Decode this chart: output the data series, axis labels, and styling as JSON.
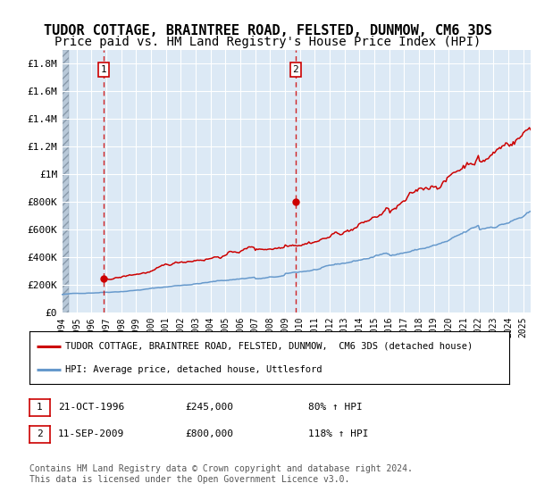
{
  "title": "TUDOR COTTAGE, BRAINTREE ROAD, FELSTED, DUNMOW, CM6 3DS",
  "subtitle": "Price paid vs. HM Land Registry's House Price Index (HPI)",
  "ylim": [
    0,
    1900000
  ],
  "xlim_start": 1994.0,
  "xlim_end": 2025.5,
  "yticks": [
    0,
    200000,
    400000,
    600000,
    800000,
    1000000,
    1200000,
    1400000,
    1600000,
    1800000
  ],
  "ytick_labels": [
    "£0",
    "£200K",
    "£400K",
    "£600K",
    "£800K",
    "£1M",
    "£1.2M",
    "£1.4M",
    "£1.6M",
    "£1.8M"
  ],
  "xtick_years": [
    1994,
    1995,
    1996,
    1997,
    1998,
    1999,
    2000,
    2001,
    2002,
    2003,
    2004,
    2005,
    2006,
    2007,
    2008,
    2009,
    2010,
    2011,
    2012,
    2013,
    2014,
    2015,
    2016,
    2017,
    2018,
    2019,
    2020,
    2021,
    2022,
    2023,
    2024,
    2025
  ],
  "transaction1_x": 1996.8,
  "transaction1_y": 245000,
  "transaction1_label": "1",
  "transaction1_date": "21-OCT-1996",
  "transaction1_price": "£245,000",
  "transaction1_hpi": "80% ↑ HPI",
  "transaction2_x": 2009.7,
  "transaction2_y": 800000,
  "transaction2_label": "2",
  "transaction2_date": "11-SEP-2009",
  "transaction2_price": "£800,000",
  "transaction2_hpi": "118% ↑ HPI",
  "vline1_x": 1996.8,
  "vline2_x": 2009.7,
  "legend_line1": "TUDOR COTTAGE, BRAINTREE ROAD, FELSTED, DUNMOW,  CM6 3DS (detached house)",
  "legend_line2": "HPI: Average price, detached house, Uttlesford",
  "footer": "Contains HM Land Registry data © Crown copyright and database right 2024.\nThis data is licensed under the Open Government Licence v3.0.",
  "house_color": "#cc0000",
  "hpi_color": "#6699cc",
  "bg_color": "#dce9f5",
  "grid_color": "#ffffff",
  "title_fontsize": 11,
  "subtitle_fontsize": 10
}
